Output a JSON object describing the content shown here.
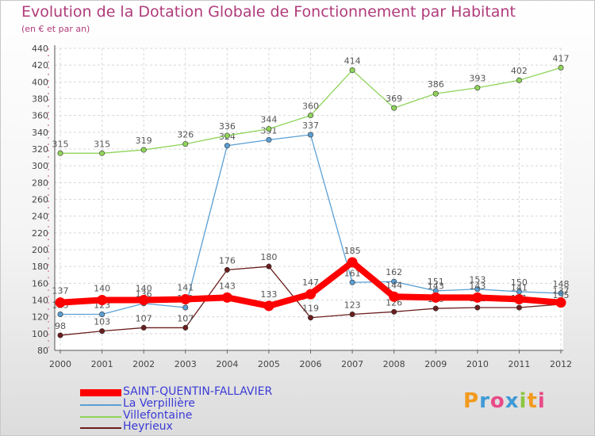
{
  "chart_data": {
    "type": "line",
    "title": "Evolution de la Dotation Globale de Fonctionnement par Habitant",
    "subtitle": "(en € et par an)",
    "x": [
      "2000",
      "2001",
      "2002",
      "2003",
      "2004",
      "2005",
      "2006",
      "2007",
      "2008",
      "2009",
      "2010",
      "2011",
      "2012"
    ],
    "ylim": [
      80,
      440
    ],
    "yticks": [
      80,
      100,
      120,
      140,
      160,
      180,
      200,
      220,
      240,
      260,
      280,
      300,
      320,
      340,
      360,
      380,
      400,
      420,
      440
    ],
    "series": [
      {
        "name": "Heyrieux",
        "color": "#6b1e1e",
        "values": [
          98,
          103,
          107,
          107,
          176,
          180,
          119,
          123,
          126,
          130,
          131,
          131,
          135
        ],
        "labels": [
          "98",
          "103",
          "107",
          "107",
          "176",
          "180",
          "119",
          "123",
          "126",
          "130",
          "131",
          "131",
          "135"
        ]
      },
      {
        "name": "La Verpillière",
        "color": "#5a9fd4",
        "values": [
          123,
          123,
          136,
          131,
          324,
          331,
          337,
          161,
          162,
          151,
          153,
          150,
          148
        ],
        "labels": [
          "123",
          "123",
          "136",
          "131",
          "324",
          "331",
          "337",
          "161",
          "162",
          "151",
          "153",
          "150",
          "148"
        ]
      },
      {
        "name": "Villefontaine",
        "color": "#8fd45a",
        "values": [
          315,
          315,
          319,
          326,
          336,
          344,
          360,
          414,
          369,
          386,
          393,
          402,
          417
        ],
        "labels": [
          "315",
          "315",
          "319",
          "326",
          "336",
          "344",
          "360",
          "414",
          "369",
          "386",
          "393",
          "402",
          "417"
        ]
      },
      {
        "name": "SAINT-QUENTIN-FALLAVIER",
        "color": "#ff0000",
        "values": [
          137,
          140,
          140,
          141,
          143,
          133,
          147,
          185,
          144,
          143,
          143,
          141,
          137
        ],
        "labels": [
          "137",
          "140",
          "140",
          "141",
          "143",
          "133",
          "147",
          "185",
          "144",
          "143",
          "143",
          "141",
          "137"
        ]
      }
    ],
    "legend": [
      "SAINT-QUENTIN-FALLAVIER",
      "La Verpillière",
      "Villefontaine",
      "Heyrieux"
    ],
    "legend_position": "bottom-left",
    "grid": true
  },
  "logo": {
    "letters": [
      "P",
      "r",
      "o",
      "x",
      "i",
      "t",
      "i"
    ],
    "colors": [
      "#f29a1d",
      "#3f9ad6",
      "#e94a88",
      "#3f9ad6",
      "#8cc63f",
      "#f29a1d",
      "#e94a88"
    ]
  }
}
